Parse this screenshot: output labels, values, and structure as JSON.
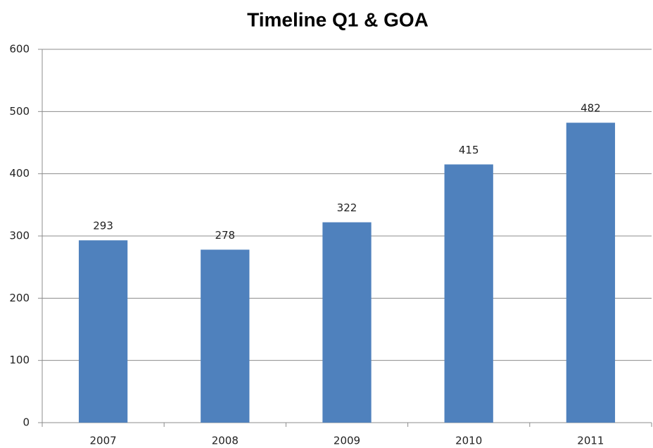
{
  "chart_data": {
    "type": "bar",
    "title": "Timeline Q1 & GOA",
    "categories": [
      "2007",
      "2008",
      "2009",
      "2010",
      "2011"
    ],
    "values": [
      293,
      278,
      322,
      415,
      482
    ],
    "color": "#4f81bd",
    "ylim": [
      0,
      600
    ],
    "yticks": [
      0,
      100,
      200,
      300,
      400,
      500,
      600
    ],
    "grid": true
  }
}
